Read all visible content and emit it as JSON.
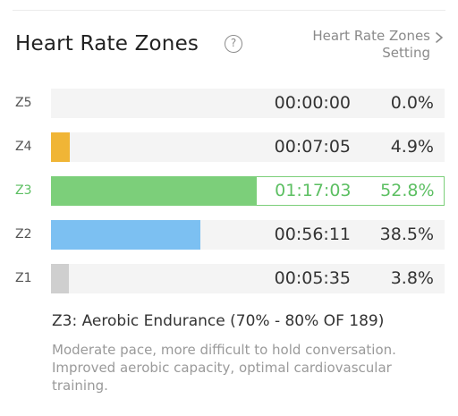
{
  "header": {
    "title": "Heart Rate Zones",
    "help_icon": "question-circle-icon",
    "help_glyph": "?",
    "settings_label": "Heart Rate Zones Setting",
    "settings_icon": "chevron-right-icon"
  },
  "zones": [
    {
      "label": "Z5",
      "time": "00:00:00",
      "percent": "0.0%",
      "fill_percent": 0.0,
      "color": "#d0d0d0",
      "active": false
    },
    {
      "label": "Z4",
      "time": "00:07:05",
      "percent": "4.9%",
      "fill_percent": 4.9,
      "color": "#f0b536",
      "active": false
    },
    {
      "label": "Z3",
      "time": "01:17:03",
      "percent": "52.8%",
      "fill_percent": 52.8,
      "color": "#7ccf7a",
      "active": true
    },
    {
      "label": "Z2",
      "time": "00:56:11",
      "percent": "38.5%",
      "fill_percent": 38.5,
      "color": "#7cc0f2",
      "active": false
    },
    {
      "label": "Z1",
      "time": "00:05:35",
      "percent": "3.8%",
      "fill_percent": 3.8,
      "color": "#cfcfcf",
      "active": false
    }
  ],
  "description": {
    "title": "Z3: Aerobic Endurance (70% - 80% OF 189)",
    "text": "Moderate pace, more difficult to hold conversation. Improved aerobic capacity, optimal cardiovascular training."
  },
  "colors": {
    "active_accent": "#5cbf62",
    "track": "#f4f4f4"
  }
}
